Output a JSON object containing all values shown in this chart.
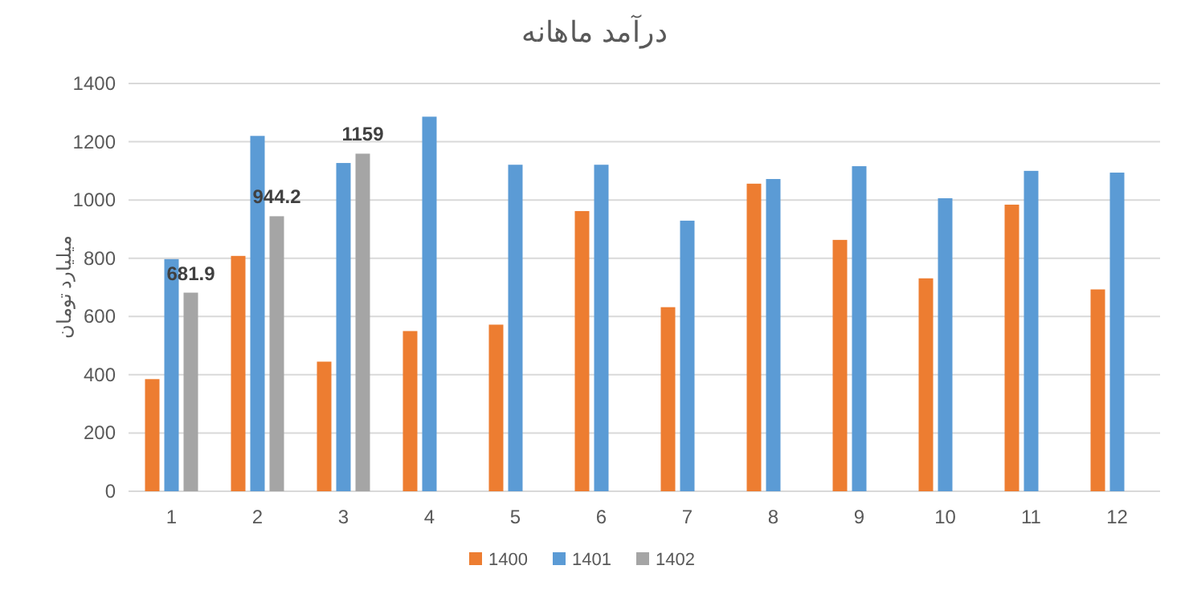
{
  "chart_data": {
    "type": "bar",
    "title": "درآمد ماهانه",
    "ylabel": "میلیارد تومان",
    "categories": [
      "1",
      "2",
      "3",
      "4",
      "5",
      "6",
      "7",
      "8",
      "9",
      "10",
      "11",
      "12"
    ],
    "series": [
      {
        "name": "1400",
        "color": "#ed7d31",
        "values": [
          385,
          808,
          445,
          550,
          572,
          962,
          632,
          1056,
          863,
          731,
          984,
          693
        ]
      },
      {
        "name": "1401",
        "color": "#5b9bd5",
        "values": [
          797,
          1220,
          1127,
          1286,
          1121,
          1121,
          929,
          1072,
          1116,
          1006,
          1100,
          1094
        ]
      },
      {
        "name": "1402",
        "color": "#a5a5a5",
        "values": [
          681.9,
          944.2,
          1159,
          null,
          null,
          null,
          null,
          null,
          null,
          null,
          null,
          null
        ],
        "value_labels": [
          "681.9",
          "944.2",
          "1159",
          null,
          null,
          null,
          null,
          null,
          null,
          null,
          null,
          null
        ]
      }
    ],
    "ylim": [
      0,
      1400
    ],
    "yticks": [
      0,
      200,
      400,
      600,
      800,
      1000,
      1200,
      1400
    ],
    "grid": "y",
    "legend": "bottom"
  }
}
